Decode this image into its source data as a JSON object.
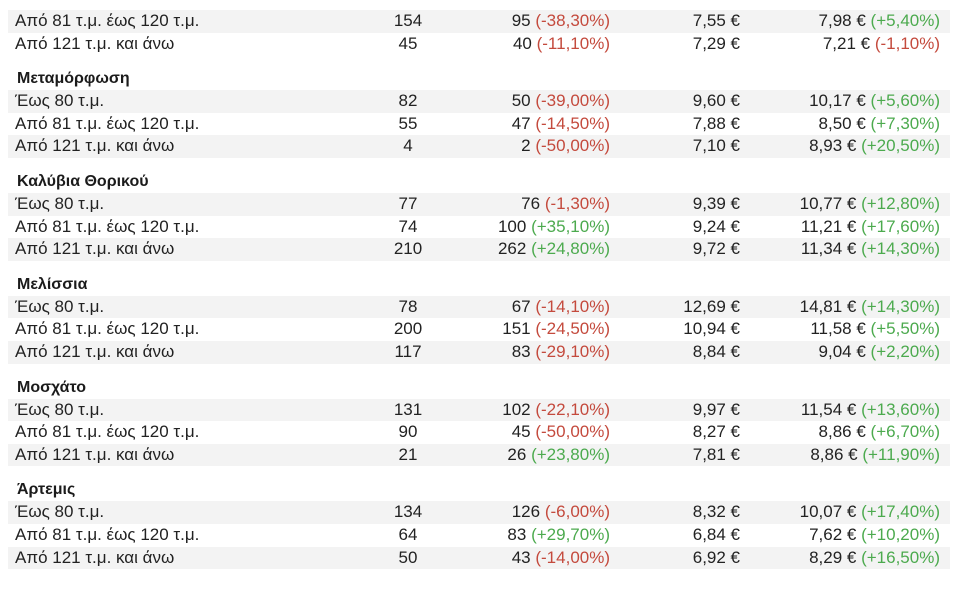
{
  "top_rows": [
    {
      "size": "Από 81 τ.μ. έως 120 τ.μ.",
      "count": "154",
      "new": "95",
      "new_change": "(-38,30%)",
      "new_change_sign": "neg",
      "old_price": "7,55 €",
      "price": "7,98 €",
      "price_change": "(+5,40%)",
      "price_change_sign": "pos"
    },
    {
      "size": "Από 121 τ.μ. και άνω",
      "count": "45",
      "new": "40",
      "new_change": "(-11,10%)",
      "new_change_sign": "neg",
      "old_price": "7,29 €",
      "price": "7,21 €",
      "price_change": "(-1,10%)",
      "price_change_sign": "neg"
    }
  ],
  "sections": [
    {
      "name": "Μεταμόρφωση",
      "rows": [
        {
          "size": "Έως 80 τ.μ.",
          "count": "82",
          "new": "50",
          "new_change": "(-39,00%)",
          "new_change_sign": "neg",
          "old_price": "9,60 €",
          "price": "10,17 €",
          "price_change": "(+5,60%)",
          "price_change_sign": "pos"
        },
        {
          "size": "Από 81 τ.μ. έως 120 τ.μ.",
          "count": "55",
          "new": "47",
          "new_change": "(-14,50%)",
          "new_change_sign": "neg",
          "old_price": "7,88 €",
          "price": "8,50 €",
          "price_change": "(+7,30%)",
          "price_change_sign": "pos"
        },
        {
          "size": "Από 121 τ.μ. και άνω",
          "count": "4",
          "new": "2",
          "new_change": "(-50,00%)",
          "new_change_sign": "neg",
          "old_price": "7,10 €",
          "price": "8,93 €",
          "price_change": "(+20,50%)",
          "price_change_sign": "pos"
        }
      ]
    },
    {
      "name": "Καλύβια Θορικού",
      "rows": [
        {
          "size": "Έως 80 τ.μ.",
          "count": "77",
          "new": "76",
          "new_change": "(-1,30%)",
          "new_change_sign": "neg",
          "old_price": "9,39 €",
          "price": "10,77 €",
          "price_change": "(+12,80%)",
          "price_change_sign": "pos"
        },
        {
          "size": "Από 81 τ.μ. έως 120 τ.μ.",
          "count": "74",
          "new": "100",
          "new_change": "(+35,10%)",
          "new_change_sign": "pos",
          "old_price": "9,24 €",
          "price": "11,21 €",
          "price_change": "(+17,60%)",
          "price_change_sign": "pos"
        },
        {
          "size": "Από 121 τ.μ. και άνω",
          "count": "210",
          "new": "262",
          "new_change": "(+24,80%)",
          "new_change_sign": "pos",
          "old_price": "9,72 €",
          "price": "11,34 €",
          "price_change": "(+14,30%)",
          "price_change_sign": "pos"
        }
      ]
    },
    {
      "name": "Μελίσσια",
      "rows": [
        {
          "size": "Έως 80 τ.μ.",
          "count": "78",
          "new": "67",
          "new_change": "(-14,10%)",
          "new_change_sign": "neg",
          "old_price": "12,69 €",
          "price": "14,81 €",
          "price_change": "(+14,30%)",
          "price_change_sign": "pos"
        },
        {
          "size": "Από 81 τ.μ. έως 120 τ.μ.",
          "count": "200",
          "new": "151",
          "new_change": "(-24,50%)",
          "new_change_sign": "neg",
          "old_price": "10,94 €",
          "price": "11,58 €",
          "price_change": "(+5,50%)",
          "price_change_sign": "pos"
        },
        {
          "size": "Από 121 τ.μ. και άνω",
          "count": "117",
          "new": "83",
          "new_change": "(-29,10%)",
          "new_change_sign": "neg",
          "old_price": "8,84 €",
          "price": "9,04 €",
          "price_change": "(+2,20%)",
          "price_change_sign": "pos"
        }
      ]
    },
    {
      "name": "Μοσχάτο",
      "rows": [
        {
          "size": "Έως 80 τ.μ.",
          "count": "131",
          "new": "102",
          "new_change": "(-22,10%)",
          "new_change_sign": "neg",
          "old_price": "9,97 €",
          "price": "11,54 €",
          "price_change": "(+13,60%)",
          "price_change_sign": "pos"
        },
        {
          "size": "Από 81 τ.μ. έως 120 τ.μ.",
          "count": "90",
          "new": "45",
          "new_change": "(-50,00%)",
          "new_change_sign": "neg",
          "old_price": "8,27 €",
          "price": "8,86 €",
          "price_change": "(+6,70%)",
          "price_change_sign": "pos"
        },
        {
          "size": "Από 121 τ.μ. και άνω",
          "count": "21",
          "new": "26",
          "new_change": "(+23,80%)",
          "new_change_sign": "pos",
          "old_price": "7,81 €",
          "price": "8,86 €",
          "price_change": "(+11,90%)",
          "price_change_sign": "pos"
        }
      ]
    },
    {
      "name": "Άρτεμις",
      "rows": [
        {
          "size": "Έως 80 τ.μ.",
          "count": "134",
          "new": "126",
          "new_change": "(-6,00%)",
          "new_change_sign": "neg",
          "old_price": "8,32 €",
          "price": "10,07 €",
          "price_change": "(+17,40%)",
          "price_change_sign": "pos"
        },
        {
          "size": "Από 81 τ.μ. έως 120 τ.μ.",
          "count": "64",
          "new": "83",
          "new_change": "(+29,70%)",
          "new_change_sign": "pos",
          "old_price": "6,84 €",
          "price": "7,62 €",
          "price_change": "(+10,20%)",
          "price_change_sign": "pos"
        },
        {
          "size": "Από 121 τ.μ. και άνω",
          "count": "50",
          "new": "43",
          "new_change": "(-14,00%)",
          "new_change_sign": "neg",
          "old_price": "6,92 €",
          "price": "8,29 €",
          "price_change": "(+16,50%)",
          "price_change_sign": "pos"
        }
      ]
    }
  ],
  "colors": {
    "negative": "#c44a3d",
    "positive": "#4caa4e",
    "row_shade": "#f3f3f3"
  }
}
